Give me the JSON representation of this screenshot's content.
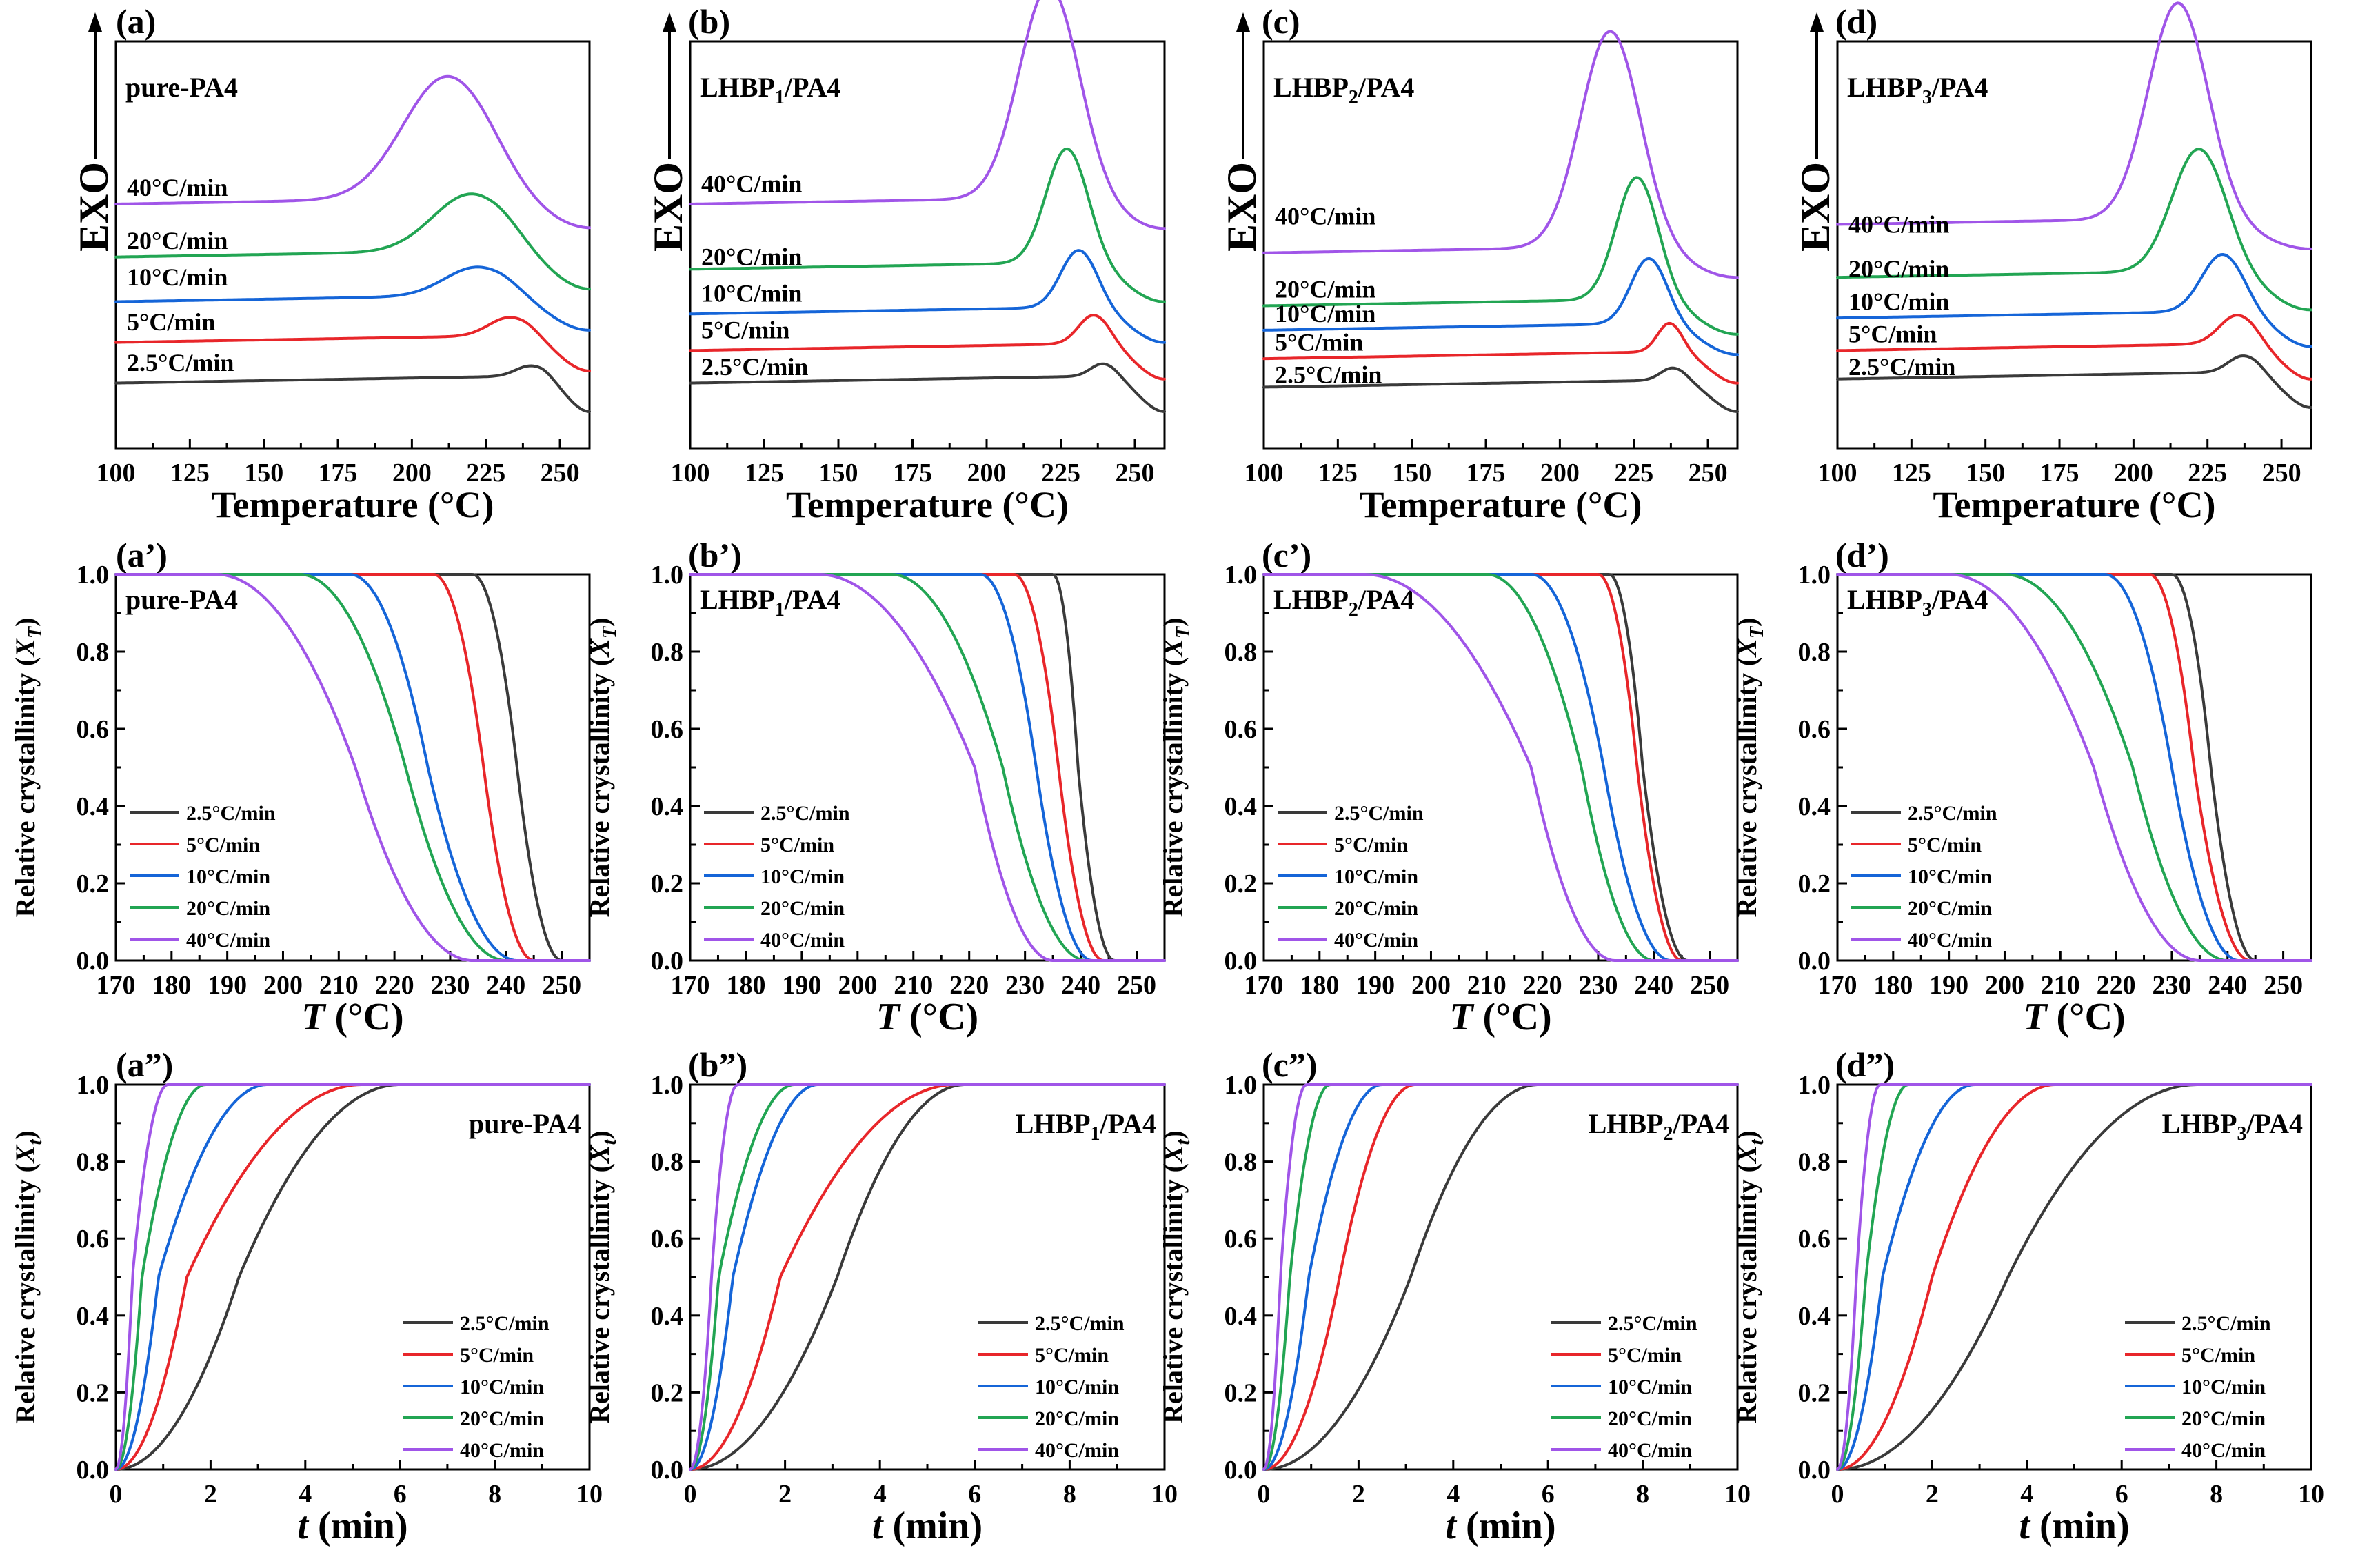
{
  "figure_title": "Non-isothermal crystallization of pure-PA4 and LHBP/PA4 composites",
  "series_colors": {
    "2.5°C/min": "#3a3a3a",
    "5°C/min": "#e8262a",
    "10°C/min": "#1565d8",
    "20°C/min": "#22a553",
    "40°C/min": "#a055e8"
  },
  "chart_data": [
    {
      "id": "a",
      "type": "line",
      "row": "dsc",
      "panel_label": "(a)",
      "sample": "pure-PA4",
      "sample_sub": "",
      "sample_pre": "pure-PA4",
      "sample_post": "",
      "ylabel": "EXO",
      "xlabel_main": "Temperature (°C)",
      "xlim": [
        100,
        260
      ],
      "ylim": [
        0,
        1
      ],
      "xticks": [
        "100",
        "125",
        "150",
        "175",
        "200",
        "225",
        "250"
      ],
      "rate_labels": [
        "40°C/min",
        "20°C/min",
        "10°C/min",
        "5°C/min",
        "2.5°C/min"
      ],
      "series": [
        {
          "name": "2.5°C/min",
          "baseline": 0.16,
          "peak_T": 240,
          "height": 0.025,
          "width": 5,
          "tail": 0.09,
          "label_y": 0.19
        },
        {
          "name": "5°C/min",
          "baseline": 0.26,
          "peak_T": 233,
          "height": 0.045,
          "width": 7,
          "tail": 0.09,
          "label_y": 0.29
        },
        {
          "name": "10°C/min",
          "baseline": 0.36,
          "peak_T": 222,
          "height": 0.07,
          "width": 11,
          "tail": 0.09,
          "label_y": 0.4
        },
        {
          "name": "20°C/min",
          "baseline": 0.47,
          "peak_T": 220,
          "height": 0.14,
          "width": 13,
          "tail": 0.1,
          "label_y": 0.49
        },
        {
          "name": "40°C/min",
          "baseline": 0.6,
          "peak_T": 212,
          "height": 0.3,
          "width": 15,
          "tail": 0.08,
          "label_y": 0.62
        }
      ]
    },
    {
      "id": "b",
      "type": "line",
      "row": "dsc",
      "panel_label": "(b)",
      "sample": "LHBP1/PA4",
      "sample_sub": "1",
      "sample_pre": "LHBP",
      "sample_post": "/PA4",
      "ylabel": "EXO",
      "xlabel_main": "Temperature (°C)",
      "xlim": [
        100,
        260
      ],
      "ylim": [
        0,
        1
      ],
      "xticks": [
        "100",
        "125",
        "150",
        "175",
        "200",
        "225",
        "250"
      ],
      "rate_labels": [
        "40°C/min",
        "20°C/min",
        "10°C/min",
        "5°C/min",
        "2.5°C/min"
      ],
      "series": [
        {
          "name": "2.5°C/min",
          "baseline": 0.16,
          "peak_T": 239,
          "height": 0.03,
          "width": 4,
          "tail": 0.09,
          "label_y": 0.18
        },
        {
          "name": "5°C/min",
          "baseline": 0.24,
          "peak_T": 236,
          "height": 0.07,
          "width": 5,
          "tail": 0.09,
          "label_y": 0.27
        },
        {
          "name": "10°C/min",
          "baseline": 0.33,
          "peak_T": 231,
          "height": 0.14,
          "width": 6,
          "tail": 0.09,
          "label_y": 0.36
        },
        {
          "name": "20°C/min",
          "baseline": 0.44,
          "peak_T": 227,
          "height": 0.28,
          "width": 7,
          "tail": 0.1,
          "label_y": 0.45
        },
        {
          "name": "40°C/min",
          "baseline": 0.6,
          "peak_T": 221,
          "height": 0.52,
          "width": 10,
          "tail": 0.08,
          "label_y": 0.63
        }
      ]
    },
    {
      "id": "c",
      "type": "line",
      "row": "dsc",
      "panel_label": "(c)",
      "sample": "LHBP2/PA4",
      "sample_sub": "2",
      "sample_pre": "LHBP",
      "sample_post": "/PA4",
      "ylabel": "EXO",
      "xlabel_main": "Temperature (°C)",
      "xlim": [
        100,
        260
      ],
      "ylim": [
        0,
        1
      ],
      "xticks": [
        "100",
        "125",
        "150",
        "175",
        "200",
        "225",
        "250"
      ],
      "rate_labels": [
        "40°C/min",
        "20°C/min",
        "10°C/min",
        "5°C/min",
        "2.5°C/min"
      ],
      "series": [
        {
          "name": "2.5°C/min",
          "baseline": 0.15,
          "peak_T": 238,
          "height": 0.03,
          "width": 4,
          "tail": 0.08,
          "label_y": 0.16
        },
        {
          "name": "5°C/min",
          "baseline": 0.22,
          "peak_T": 237,
          "height": 0.07,
          "width": 4,
          "tail": 0.08,
          "label_y": 0.24
        },
        {
          "name": "10°C/min",
          "baseline": 0.29,
          "peak_T": 230,
          "height": 0.16,
          "width": 6,
          "tail": 0.08,
          "label_y": 0.31
        },
        {
          "name": "20°C/min",
          "baseline": 0.35,
          "peak_T": 226,
          "height": 0.3,
          "width": 7,
          "tail": 0.09,
          "label_y": 0.37
        },
        {
          "name": "40°C/min",
          "baseline": 0.48,
          "peak_T": 217,
          "height": 0.53,
          "width": 10,
          "tail": 0.08,
          "label_y": 0.55
        }
      ]
    },
    {
      "id": "d",
      "type": "line",
      "row": "dsc",
      "panel_label": "(d)",
      "sample": "LHBP3/PA4",
      "sample_sub": "3",
      "sample_pre": "LHBP",
      "sample_post": "/PA4",
      "ylabel": "EXO",
      "xlabel_main": "Temperature (°C)",
      "xlim": [
        100,
        260
      ],
      "ylim": [
        0,
        1
      ],
      "xticks": [
        "100",
        "125",
        "150",
        "175",
        "200",
        "225",
        "250"
      ],
      "rate_labels": [
        "40°C/min",
        "20°C/min",
        "10°C/min",
        "5°C/min",
        "2.5°C/min"
      ],
      "series": [
        {
          "name": "2.5°C/min",
          "baseline": 0.17,
          "peak_T": 237,
          "height": 0.04,
          "width": 5,
          "tail": 0.09,
          "label_y": 0.18
        },
        {
          "name": "5°C/min",
          "baseline": 0.24,
          "peak_T": 235,
          "height": 0.07,
          "width": 6,
          "tail": 0.09,
          "label_y": 0.26
        },
        {
          "name": "10°C/min",
          "baseline": 0.32,
          "peak_T": 230,
          "height": 0.14,
          "width": 7,
          "tail": 0.09,
          "label_y": 0.34
        },
        {
          "name": "20°C/min",
          "baseline": 0.42,
          "peak_T": 222,
          "height": 0.3,
          "width": 9,
          "tail": 0.1,
          "label_y": 0.42
        },
        {
          "name": "40°C/min",
          "baseline": 0.55,
          "peak_T": 215,
          "height": 0.53,
          "width": 10,
          "tail": 0.08,
          "label_y": 0.53
        }
      ]
    },
    {
      "id": "a1",
      "type": "line",
      "row": "xt",
      "panel_label": "(a’)",
      "sample": "pure-PA4",
      "sample_sub": "",
      "sample_pre": "pure-PA4",
      "sample_post": "",
      "ylabel_pre": "Relative crystallinity (",
      "ylabel_var": "X",
      "ylabel_sub": "T",
      "ylabel_post": ")",
      "xlabel_var": "T",
      "xlabel_unit": " (°C)",
      "xlim": [
        170,
        255
      ],
      "ylim": [
        0,
        1
      ],
      "xticks": [
        "170",
        "180",
        "190",
        "200",
        "210",
        "220",
        "230",
        "240",
        "250"
      ],
      "yticks": [
        "0.0",
        "0.2",
        "0.4",
        "0.6",
        "0.8",
        "1.0"
      ],
      "legend": [
        "2.5°C/min",
        "5°C/min",
        "10°C/min",
        "20°C/min",
        "40°C/min"
      ],
      "series": [
        {
          "name": "2.5°C/min",
          "T_start": 234,
          "T_half": 242,
          "T_end": 250
        },
        {
          "name": "5°C/min",
          "T_start": 227,
          "T_half": 236,
          "T_end": 245
        },
        {
          "name": "10°C/min",
          "T_start": 212,
          "T_half": 226,
          "T_end": 242
        },
        {
          "name": "20°C/min",
          "T_start": 203,
          "T_half": 222,
          "T_end": 240
        },
        {
          "name": "40°C/min",
          "T_start": 188,
          "T_half": 213,
          "T_end": 234
        }
      ]
    },
    {
      "id": "b1",
      "type": "line",
      "row": "xt",
      "panel_label": "(b’)",
      "sample": "LHBP1/PA4",
      "sample_sub": "1",
      "sample_pre": "LHBP",
      "sample_post": "/PA4",
      "ylabel_pre": "Relative crystallinity (",
      "ylabel_var": "X",
      "ylabel_sub": "T",
      "ylabel_post": ")",
      "xlabel_var": "T",
      "xlabel_unit": " (°C)",
      "xlim": [
        170,
        255
      ],
      "ylim": [
        0,
        1
      ],
      "xticks": [
        "170",
        "180",
        "190",
        "200",
        "210",
        "220",
        "230",
        "240",
        "250"
      ],
      "yticks": [
        "0.0",
        "0.2",
        "0.4",
        "0.6",
        "0.8",
        "1.0"
      ],
      "legend": [
        "2.5°C/min",
        "5°C/min",
        "10°C/min",
        "20°C/min",
        "40°C/min"
      ],
      "series": [
        {
          "name": "2.5°C/min",
          "T_start": 235,
          "T_half": 239.5,
          "T_end": 246
        },
        {
          "name": "5°C/min",
          "T_start": 228,
          "T_half": 236,
          "T_end": 244
        },
        {
          "name": "10°C/min",
          "T_start": 222,
          "T_half": 232,
          "T_end": 242
        },
        {
          "name": "20°C/min",
          "T_start": 206,
          "T_half": 226,
          "T_end": 241
        },
        {
          "name": "40°C/min",
          "T_start": 193,
          "T_half": 221,
          "T_end": 235
        }
      ]
    },
    {
      "id": "c1",
      "type": "line",
      "row": "xt",
      "panel_label": "(c’)",
      "sample": "LHBP2/PA4",
      "sample_sub": "2",
      "sample_pre": "LHBP",
      "sample_post": "/PA4",
      "ylabel_pre": "Relative crystallinity (",
      "ylabel_var": "X",
      "ylabel_sub": "T",
      "ylabel_post": ")",
      "xlabel_var": "T",
      "xlabel_unit": " (°C)",
      "xlim": [
        170,
        255
      ],
      "ylim": [
        0,
        1
      ],
      "xticks": [
        "170",
        "180",
        "190",
        "200",
        "210",
        "220",
        "230",
        "240",
        "250"
      ],
      "yticks": [
        "0.0",
        "0.2",
        "0.4",
        "0.6",
        "0.8",
        "1.0"
      ],
      "legend": [
        "2.5°C/min",
        "5°C/min",
        "10°C/min",
        "20°C/min",
        "40°C/min"
      ],
      "series": [
        {
          "name": "2.5°C/min",
          "T_start": 232,
          "T_half": 238,
          "T_end": 246
        },
        {
          "name": "5°C/min",
          "T_start": 230,
          "T_half": 237,
          "T_end": 245
        },
        {
          "name": "10°C/min",
          "T_start": 218,
          "T_half": 231,
          "T_end": 243
        },
        {
          "name": "20°C/min",
          "T_start": 210,
          "T_half": 227,
          "T_end": 240
        },
        {
          "name": "40°C/min",
          "T_start": 188,
          "T_half": 218,
          "T_end": 233
        }
      ]
    },
    {
      "id": "d1",
      "type": "line",
      "row": "xt",
      "panel_label": "(d’)",
      "sample": "LHBP3/PA4",
      "sample_sub": "3",
      "sample_pre": "LHBP",
      "sample_post": "/PA4",
      "ylabel_pre": "Relative crystallinity (",
      "ylabel_var": "X",
      "ylabel_sub": "T",
      "ylabel_post": ")",
      "xlabel_var": "T",
      "xlabel_unit": " (°C)",
      "xlim": [
        170,
        255
      ],
      "ylim": [
        0,
        1
      ],
      "xticks": [
        "170",
        "180",
        "190",
        "200",
        "210",
        "220",
        "230",
        "240",
        "250"
      ],
      "yticks": [
        "0.0",
        "0.2",
        "0.4",
        "0.6",
        "0.8",
        "1.0"
      ],
      "legend": [
        "2.5°C/min",
        "5°C/min",
        "10°C/min",
        "20°C/min",
        "40°C/min"
      ],
      "series": [
        {
          "name": "2.5°C/min",
          "T_start": 230,
          "T_half": 237,
          "T_end": 245
        },
        {
          "name": "5°C/min",
          "T_start": 226,
          "T_half": 234,
          "T_end": 244
        },
        {
          "name": "10°C/min",
          "T_start": 218,
          "T_half": 230,
          "T_end": 242
        },
        {
          "name": "20°C/min",
          "T_start": 200,
          "T_half": 223,
          "T_end": 240
        },
        {
          "name": "40°C/min",
          "T_start": 190,
          "T_half": 216,
          "T_end": 235
        }
      ]
    },
    {
      "id": "a2",
      "type": "line",
      "row": "xt_time",
      "panel_label": "(a”)",
      "sample": "pure-PA4",
      "sample_sub": "",
      "sample_pre": "pure-PA4",
      "sample_post": "",
      "ylabel_pre": "Relative crystallinity (",
      "ylabel_var": "X",
      "ylabel_sub": "t",
      "ylabel_post": ")",
      "xlabel_var": "t",
      "xlabel_unit": " (min)",
      "xlim": [
        0,
        10
      ],
      "ylim": [
        0,
        1
      ],
      "xticks": [
        "0",
        "2",
        "4",
        "6",
        "8",
        "10"
      ],
      "yticks": [
        "0.0",
        "0.2",
        "0.4",
        "0.6",
        "0.8",
        "1.0"
      ],
      "legend": [
        "2.5°C/min",
        "5°C/min",
        "10°C/min",
        "20°C/min",
        "40°C/min"
      ],
      "series": [
        {
          "name": "2.5°C/min",
          "t_half": 2.6,
          "t_end": 6.0
        },
        {
          "name": "5°C/min",
          "t_half": 1.5,
          "t_end": 5.2
        },
        {
          "name": "10°C/min",
          "t_half": 0.9,
          "t_end": 3.2
        },
        {
          "name": "20°C/min",
          "t_half": 0.55,
          "t_end": 1.9
        },
        {
          "name": "40°C/min",
          "t_half": 0.35,
          "t_end": 1.1
        }
      ]
    },
    {
      "id": "b2",
      "type": "line",
      "row": "xt_time",
      "panel_label": "(b”)",
      "sample": "LHBP1/PA4",
      "sample_sub": "1",
      "sample_pre": "LHBP",
      "sample_post": "/PA4",
      "ylabel_pre": "Relative crystallinity (",
      "ylabel_var": "X",
      "ylabel_sub": "t",
      "ylabel_post": ")",
      "xlabel_var": "t",
      "xlabel_unit": " (min)",
      "xlim": [
        0,
        10
      ],
      "ylim": [
        0,
        1
      ],
      "xticks": [
        "0",
        "2",
        "4",
        "6",
        "8",
        "10"
      ],
      "yticks": [
        "0.0",
        "0.2",
        "0.4",
        "0.6",
        "0.8",
        "1.0"
      ],
      "legend": [
        "2.5°C/min",
        "5°C/min",
        "10°C/min",
        "20°C/min",
        "40°C/min"
      ],
      "series": [
        {
          "name": "2.5°C/min",
          "t_half": 3.1,
          "t_end": 5.8
        },
        {
          "name": "5°C/min",
          "t_half": 1.9,
          "t_end": 5.6
        },
        {
          "name": "10°C/min",
          "t_half": 0.9,
          "t_end": 2.7
        },
        {
          "name": "20°C/min",
          "t_half": 0.6,
          "t_end": 2.2
        },
        {
          "name": "40°C/min",
          "t_half": 0.45,
          "t_end": 1.0
        }
      ]
    },
    {
      "id": "c2",
      "type": "line",
      "row": "xt_time",
      "panel_label": "(c”)",
      "sample": "LHBP2/PA4",
      "sample_sub": "2",
      "sample_pre": "LHBP",
      "sample_post": "/PA4",
      "ylabel_pre": "Relative crystallinity (",
      "ylabel_var": "X",
      "ylabel_sub": "t",
      "ylabel_post": ")",
      "xlabel_var": "t",
      "xlabel_unit": " (min)",
      "xlim": [
        0,
        10
      ],
      "ylim": [
        0,
        1
      ],
      "xticks": [
        "0",
        "2",
        "4",
        "6",
        "8",
        "10"
      ],
      "yticks": [
        "0.0",
        "0.2",
        "0.4",
        "0.6",
        "0.8",
        "1.0"
      ],
      "legend": [
        "2.5°C/min",
        "5°C/min",
        "10°C/min",
        "20°C/min",
        "40°C/min"
      ],
      "series": [
        {
          "name": "2.5°C/min",
          "t_half": 3.1,
          "t_end": 5.8
        },
        {
          "name": "5°C/min",
          "t_half": 1.6,
          "t_end": 3.2
        },
        {
          "name": "10°C/min",
          "t_half": 0.95,
          "t_end": 2.5
        },
        {
          "name": "20°C/min",
          "t_half": 0.55,
          "t_end": 1.4
        },
        {
          "name": "40°C/min",
          "t_half": 0.35,
          "t_end": 0.9
        }
      ]
    },
    {
      "id": "d2",
      "type": "line",
      "row": "xt_time",
      "panel_label": "(d”)",
      "sample": "LHBP3/PA4",
      "sample_sub": "3",
      "sample_pre": "LHBP",
      "sample_post": "/PA4",
      "ylabel_pre": "Relative crystallinity (",
      "ylabel_var": "X",
      "ylabel_sub": "t",
      "ylabel_post": ")",
      "xlabel_var": "t",
      "xlabel_unit": " (min)",
      "xlim": [
        0,
        10
      ],
      "ylim": [
        0,
        1
      ],
      "xticks": [
        "0",
        "2",
        "4",
        "6",
        "8",
        "10"
      ],
      "yticks": [
        "0.0",
        "0.2",
        "0.4",
        "0.6",
        "0.8",
        "1.0"
      ],
      "legend": [
        "2.5°C/min",
        "5°C/min",
        "10°C/min",
        "20°C/min",
        "40°C/min"
      ],
      "series": [
        {
          "name": "2.5°C/min",
          "t_half": 3.6,
          "t_end": 7.6
        },
        {
          "name": "5°C/min",
          "t_half": 2.0,
          "t_end": 4.6
        },
        {
          "name": "10°C/min",
          "t_half": 0.95,
          "t_end": 2.9
        },
        {
          "name": "20°C/min",
          "t_half": 0.6,
          "t_end": 1.5
        },
        {
          "name": "40°C/min",
          "t_half": 0.4,
          "t_end": 0.9
        }
      ]
    }
  ]
}
